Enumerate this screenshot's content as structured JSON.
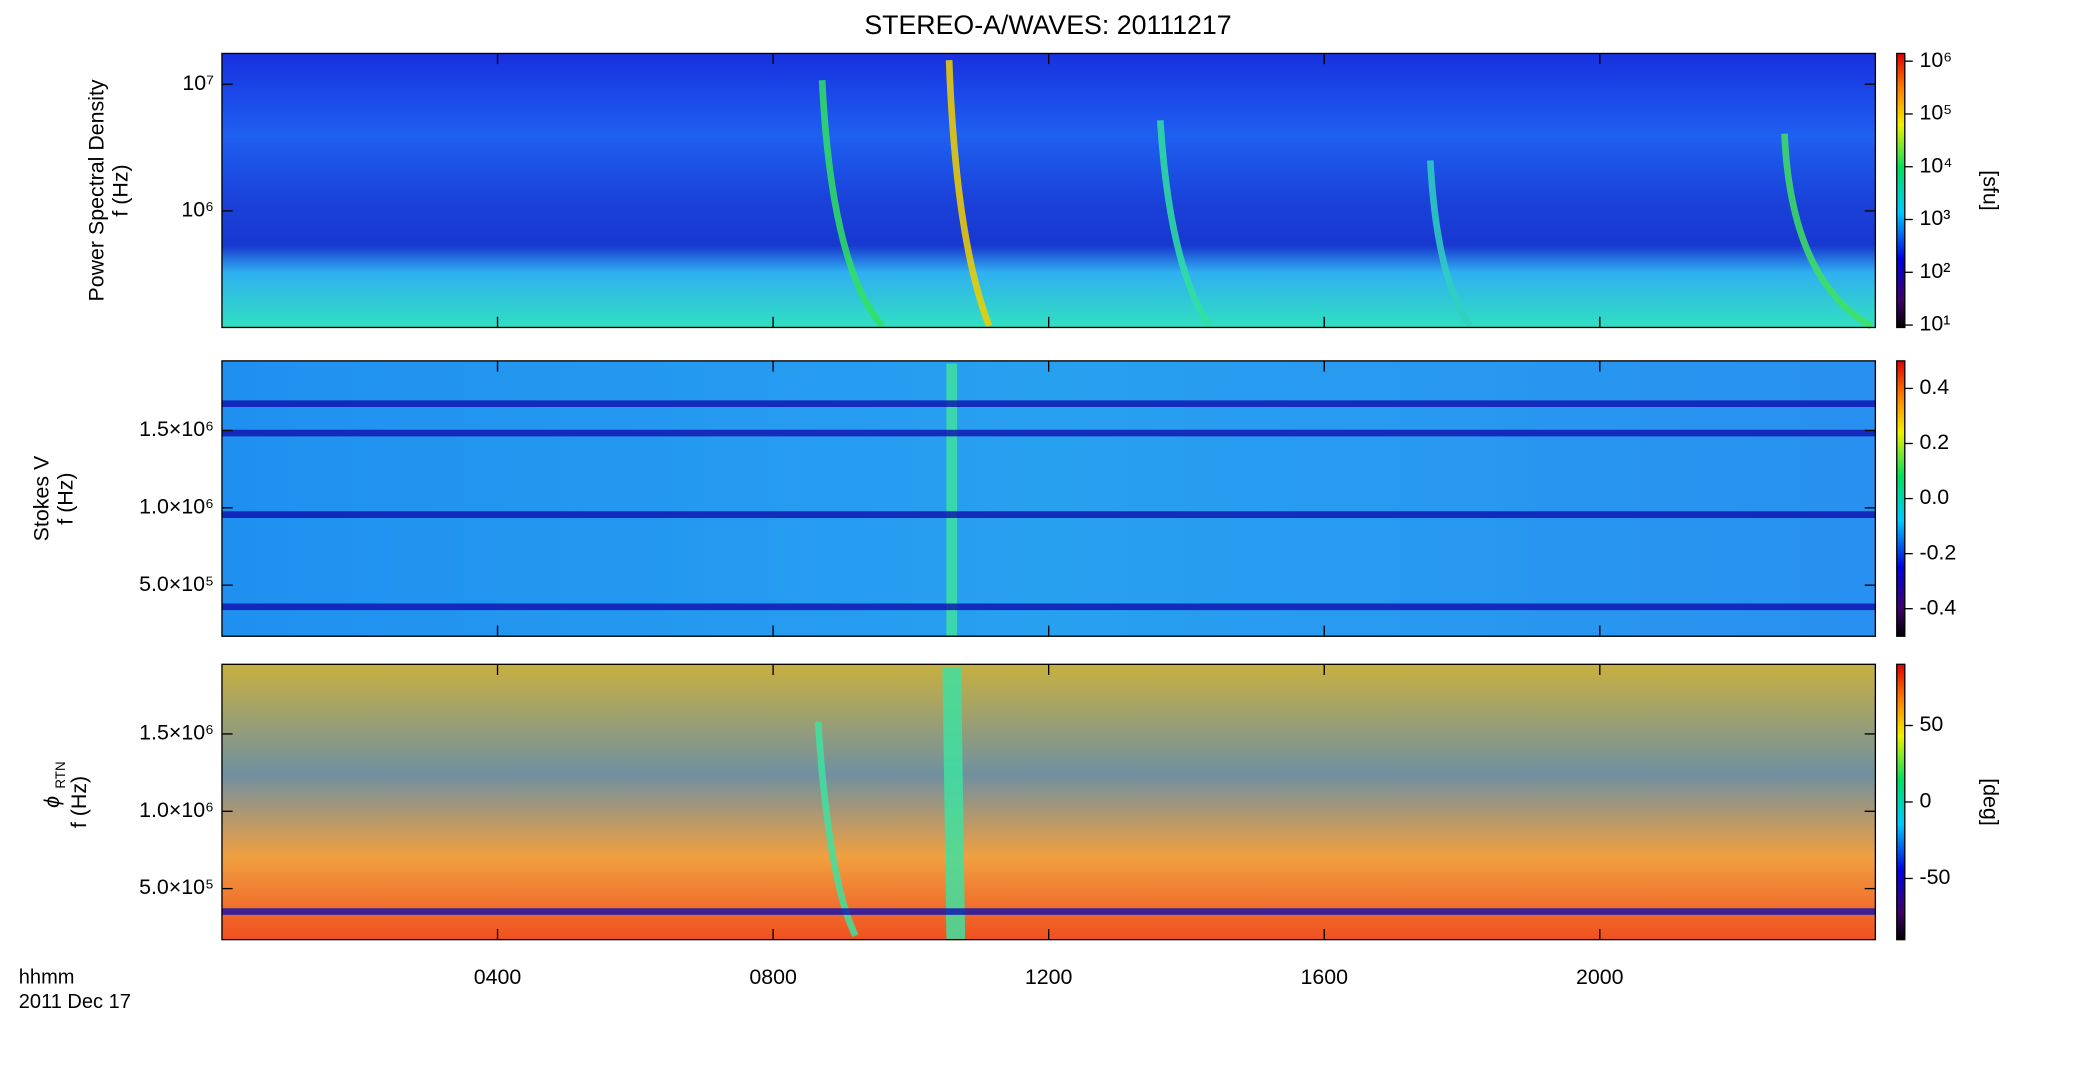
{
  "chart_data": {
    "type": "spectrogram",
    "title": "STEREO-A/WAVES: 20111217",
    "xlim": [
      0,
      24
    ],
    "xticks": [
      {
        "value": 4,
        "label": "0400"
      },
      {
        "value": 8,
        "label": "0800"
      },
      {
        "value": 12,
        "label": "1200"
      },
      {
        "value": 16,
        "label": "1600"
      },
      {
        "value": 20,
        "label": "2000"
      }
    ],
    "xlabel": "hhmm",
    "date": "2011 Dec 17",
    "panels": [
      {
        "ylabel": "Power Spectral Density",
        "yunit": "f (Hz)",
        "ylog": true,
        "ylim": [
          120000,
          17500000
        ],
        "yticks": [
          {
            "value": 1000000,
            "label": "10⁶"
          },
          {
            "value": 10000000,
            "label": "10⁷"
          }
        ],
        "colorbar": {
          "log": true,
          "lim": [
            9,
            1400000
          ],
          "label": "[sfu]",
          "ticks": [
            {
              "value": 10,
              "label": "10¹"
            },
            {
              "value": 100,
              "label": "10²"
            },
            {
              "value": 1000,
              "label": "10³"
            },
            {
              "value": 10000,
              "label": "10⁴"
            },
            {
              "value": 100000,
              "label": "10⁵"
            },
            {
              "value": 1000000,
              "label": "10⁶"
            }
          ]
        }
      },
      {
        "ylabel": "Stokes V",
        "yunit": "f (Hz)",
        "ylog": false,
        "ylim": [
          170000,
          1950000
        ],
        "yticks": [
          {
            "value": 500000,
            "label": "5.0×10⁵"
          },
          {
            "value": 1000000,
            "label": "1.0×10⁶"
          },
          {
            "value": 1500000,
            "label": "1.5×10⁶"
          }
        ],
        "colorbar": {
          "log": false,
          "lim": [
            -0.5,
            0.5
          ],
          "ticks": [
            -0.4,
            -0.2,
            {
              "value": 0,
              "label": "0.0"
            },
            0.2,
            0.4
          ]
        }
      },
      {
        "ylabel": "ϕ",
        "ylabel_sub": "RTN",
        "yunit": "f (Hz)",
        "ylog": false,
        "ylim": [
          170000,
          1950000
        ],
        "yticks": [
          {
            "value": 500000,
            "label": "5.0×10⁵"
          },
          {
            "value": 1000000,
            "label": "1.0×10⁶"
          },
          {
            "value": 1500000,
            "label": "1.5×10⁶"
          }
        ],
        "colorbar": {
          "log": false,
          "lim": [
            -90,
            90
          ],
          "label": "[deg]",
          "ticks": [
            -50,
            0,
            50
          ]
        }
      }
    ]
  }
}
